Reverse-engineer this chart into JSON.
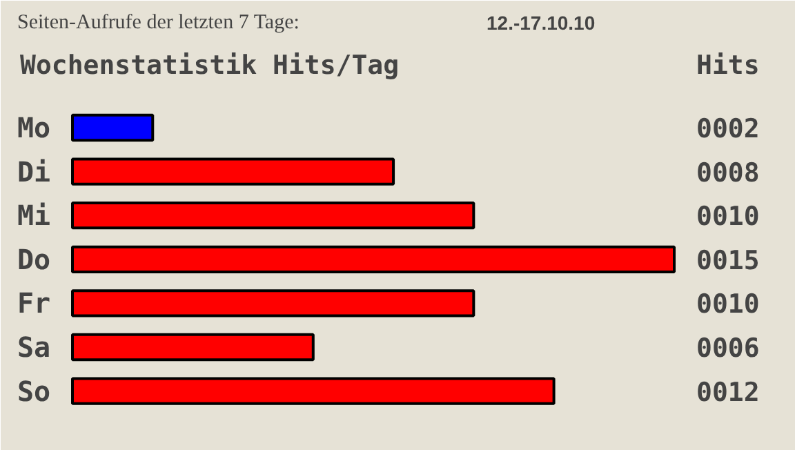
{
  "chart_data": {
    "type": "bar",
    "orientation": "horizontal",
    "title": "Seiten-Aufrufe der letzten 7 Tage:",
    "subtitle": "12.-17.10.10",
    "xlabel": "Wochenstatistik Hits/Tag",
    "y2label": "Hits",
    "categories": [
      "Mo",
      "Di",
      "Mi",
      "Do",
      "Fr",
      "Sa",
      "So"
    ],
    "values": [
      2,
      8,
      10,
      15,
      10,
      6,
      12
    ],
    "colors": [
      "#0000ff",
      "#ff0000",
      "#ff0000",
      "#ff0000",
      "#ff0000",
      "#ff0000",
      "#ff0000"
    ],
    "value_labels": [
      "0002",
      "0008",
      "0010",
      "0015",
      "0010",
      "0006",
      "0012"
    ],
    "grid": false
  }
}
